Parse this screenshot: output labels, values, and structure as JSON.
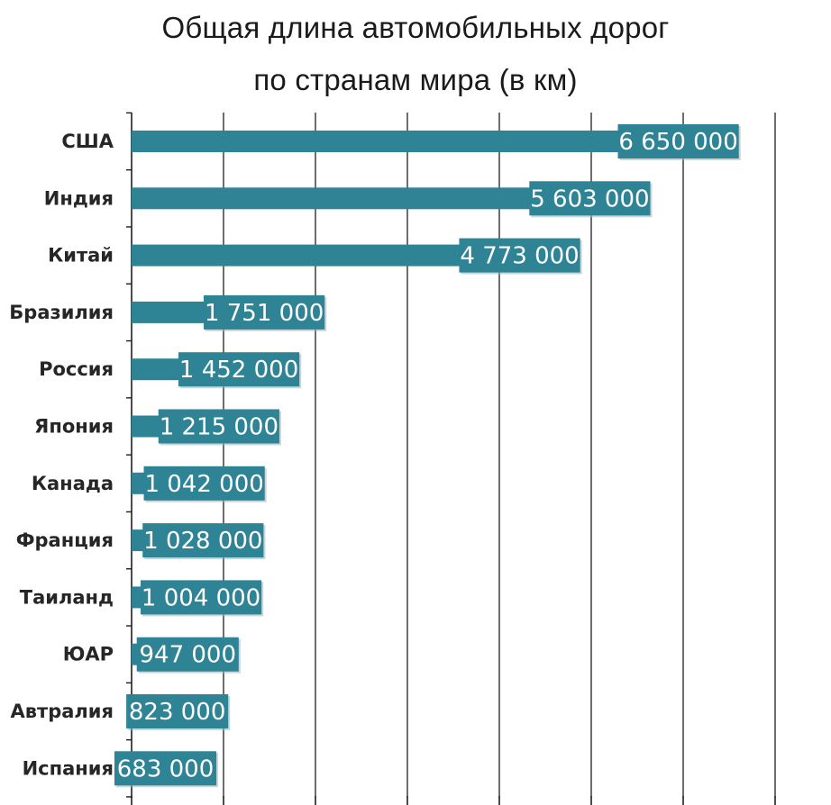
{
  "chart_data": {
    "type": "bar",
    "orientation": "horizontal",
    "title": "Общая длина автомобильных дорог по странам мира (в км)",
    "title_lines": [
      "Общая длина автомобильных дорог",
      "по странам мира (в км)"
    ],
    "categories": [
      "США",
      "Индия",
      "Китай",
      "Бразилия",
      "Россия",
      "Япония",
      "Канада",
      "Франция",
      "Таиланд",
      "ЮАР",
      "Автралия",
      "Испания"
    ],
    "values": [
      6650000,
      5603000,
      4773000,
      1751000,
      1452000,
      1215000,
      1042000,
      1028000,
      1004000,
      947000,
      823000,
      683000
    ],
    "value_labels": [
      "6 650 000",
      "5 603 000",
      "4 773 000",
      "1 751 000",
      "1 452 000",
      "1 215 000",
      "1 042 000",
      "1 028 000",
      "1 004 000",
      "947 000",
      "823 000",
      "683 000"
    ],
    "xlim": [
      0,
      7500000
    ],
    "grid": true,
    "xlabel": "",
    "ylabel": "",
    "legend": "none"
  },
  "colors": {
    "bar": "#2e8395",
    "label_box": "#2e8395",
    "label_text": "#ffffff",
    "grid": "#1f1f1f",
    "axis": "#1f1f1f",
    "category_text": "#262626"
  }
}
